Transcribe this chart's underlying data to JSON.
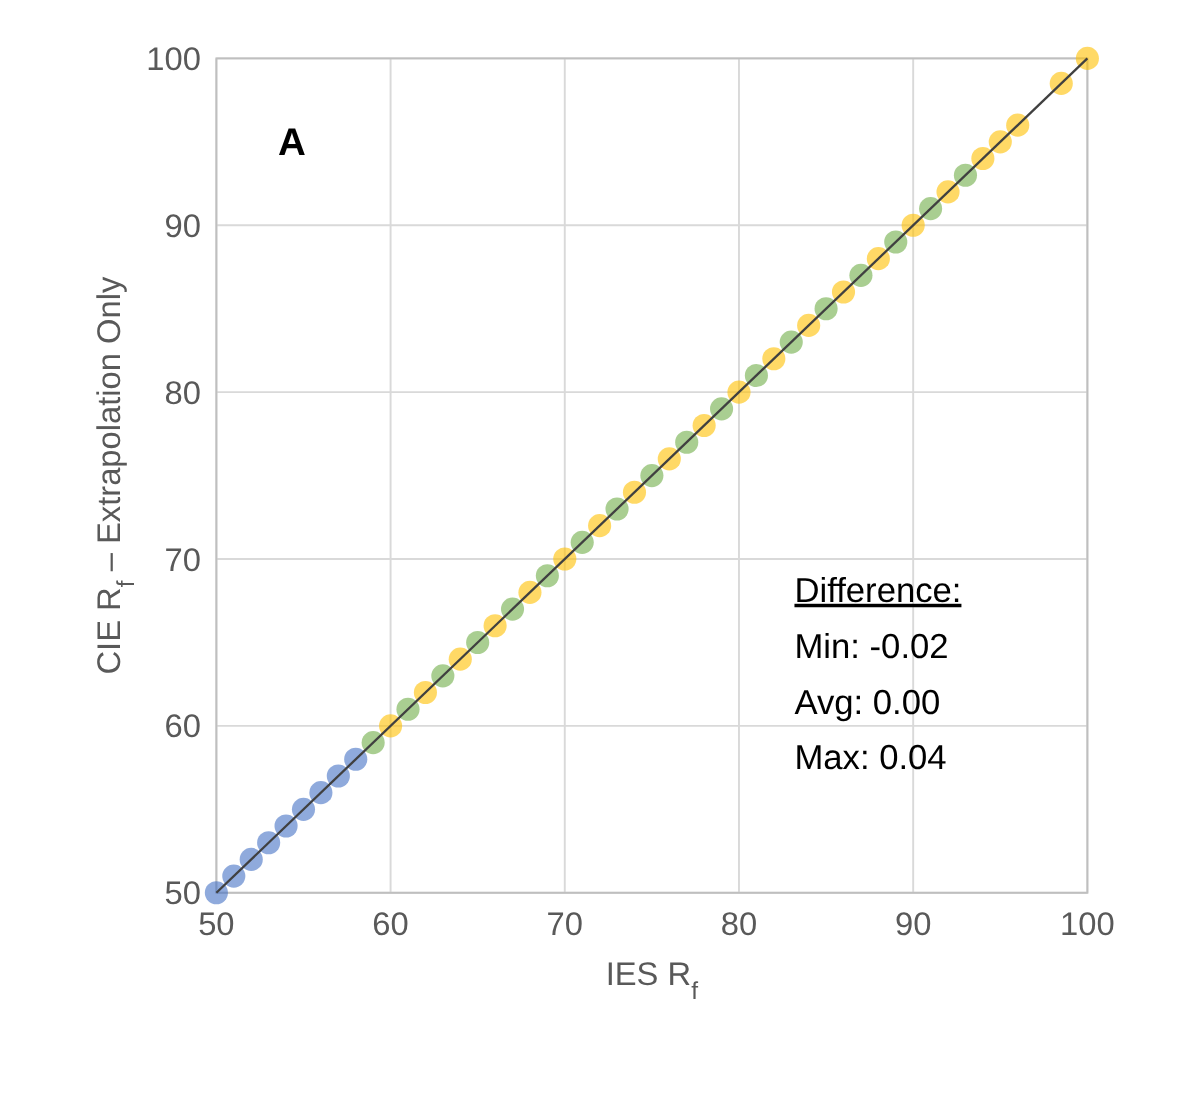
{
  "chart_data": {
    "type": "scatter",
    "xlabel": "IES R$_{f}$",
    "ylabel": "CIE R$_{f}$ – Extrapolation Only",
    "xlim": [
      50,
      100
    ],
    "ylim": [
      50,
      100
    ],
    "xticks": [
      50,
      60,
      70,
      80,
      90,
      100
    ],
    "yticks": [
      50,
      60,
      70,
      80,
      90,
      100
    ],
    "grid": true,
    "marker": "circle",
    "annotations": [
      "A",
      "Difference:",
      "Min: -0.02",
      "Avg: 0.00",
      "Max: 0.04"
    ],
    "series": [
      {
        "color": "#4472c4",
        "x": [
          50,
          51,
          52,
          53,
          54,
          55,
          56,
          57,
          58
        ],
        "values": [
          50,
          51,
          52,
          53,
          54,
          55,
          56,
          57,
          58
        ]
      },
      {
        "color": "#70ad47",
        "x": [
          59,
          61,
          63,
          65,
          67,
          69,
          71,
          73,
          75,
          77,
          79,
          81,
          83,
          85,
          87,
          89,
          91,
          93
        ],
        "values": [
          59,
          61,
          63,
          65,
          67,
          69,
          71,
          73,
          75,
          77,
          79,
          81,
          83,
          85,
          87,
          89,
          91,
          93
        ]
      },
      {
        "color": "#ffc000",
        "x": [
          60,
          62,
          64,
          66,
          68,
          70,
          72,
          74,
          76,
          78,
          80,
          82,
          84,
          86,
          88,
          90,
          92,
          94,
          95,
          96,
          98.5,
          100
        ],
        "values": [
          60,
          62,
          64,
          66,
          68,
          70,
          72,
          74,
          76,
          78,
          80,
          82,
          84,
          86,
          88,
          90,
          92,
          94,
          95,
          96,
          98.5,
          100
        ]
      },
      {
        "type": "line",
        "marker": "none",
        "color": "#404040",
        "x": [
          50,
          100
        ],
        "values": [
          50,
          100
        ]
      }
    ]
  }
}
